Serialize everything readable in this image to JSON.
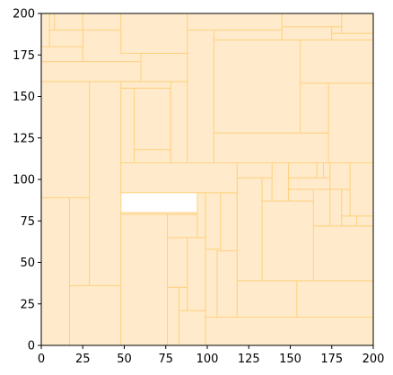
{
  "chart_data": {
    "type": "treemap",
    "title": "",
    "xlabel": "",
    "ylabel": "",
    "xlim": [
      0,
      200
    ],
    "ylim": [
      0,
      200
    ],
    "x_ticks": [
      "0",
      "25",
      "50",
      "75",
      "100",
      "125",
      "150",
      "175",
      "200"
    ],
    "y_ticks": [
      "0",
      "25",
      "50",
      "75",
      "100",
      "125",
      "150",
      "175",
      "200"
    ],
    "grid": false,
    "legend": "none",
    "fill_color": "#ffebcc",
    "edge_color": "#ffd180",
    "rectangles": [
      {
        "x0": 0,
        "y0": 0,
        "x1": 17,
        "y1": 89
      },
      {
        "x0": 17,
        "y0": 0,
        "x1": 48,
        "y1": 36
      },
      {
        "x0": 17,
        "y0": 36,
        "x1": 29,
        "y1": 89
      },
      {
        "x0": 29,
        "y0": 36,
        "x1": 48,
        "y1": 159
      },
      {
        "x0": 0,
        "y0": 89,
        "x1": 29,
        "y1": 159
      },
      {
        "x0": 48,
        "y0": 0,
        "x1": 76,
        "y1": 80
      },
      {
        "x0": 76,
        "y0": 0,
        "x1": 83,
        "y1": 35
      },
      {
        "x0": 83,
        "y0": 0,
        "x1": 99,
        "y1": 21
      },
      {
        "x0": 83,
        "y0": 21,
        "x1": 88,
        "y1": 35
      },
      {
        "x0": 76,
        "y0": 35,
        "x1": 88,
        "y1": 65
      },
      {
        "x0": 88,
        "y0": 21,
        "x1": 99,
        "y1": 65
      },
      {
        "x0": 76,
        "y0": 65,
        "x1": 94,
        "y1": 79
      },
      {
        "x0": 48,
        "y0": 80,
        "x1": 94,
        "y1": 79
      },
      {
        "x0": 94,
        "y0": 65,
        "x1": 99,
        "y1": 92
      },
      {
        "x0": 99,
        "y0": 0,
        "x1": 200,
        "y1": 17
      },
      {
        "x0": 99,
        "y0": 17,
        "x1": 106,
        "y1": 58
      },
      {
        "x0": 106,
        "y0": 17,
        "x1": 118,
        "y1": 57
      },
      {
        "x0": 99,
        "y0": 58,
        "x1": 108,
        "y1": 92
      },
      {
        "x0": 108,
        "y0": 57,
        "x1": 118,
        "y1": 92
      },
      {
        "x0": 118,
        "y0": 17,
        "x1": 154,
        "y1": 39
      },
      {
        "x0": 154,
        "y0": 17,
        "x1": 200,
        "y1": 39
      },
      {
        "x0": 118,
        "y0": 39,
        "x1": 133,
        "y1": 101
      },
      {
        "x0": 133,
        "y0": 39,
        "x1": 164,
        "y1": 87
      },
      {
        "x0": 164,
        "y0": 39,
        "x1": 200,
        "y1": 72
      },
      {
        "x0": 133,
        "y0": 87,
        "x1": 139,
        "y1": 101
      },
      {
        "x0": 139,
        "y0": 87,
        "x1": 149,
        "y1": 110
      },
      {
        "x0": 149,
        "y0": 87,
        "x1": 164,
        "y1": 94
      },
      {
        "x0": 164,
        "y0": 72,
        "x1": 174,
        "y1": 94
      },
      {
        "x0": 174,
        "y0": 72,
        "x1": 181,
        "y1": 94
      },
      {
        "x0": 181,
        "y0": 72,
        "x1": 190,
        "y1": 78
      },
      {
        "x0": 190,
        "y0": 72,
        "x1": 200,
        "y1": 78
      },
      {
        "x0": 181,
        "y0": 78,
        "x1": 186,
        "y1": 94
      },
      {
        "x0": 186,
        "y0": 78,
        "x1": 200,
        "y1": 110
      },
      {
        "x0": 149,
        "y0": 94,
        "x1": 174,
        "y1": 101
      },
      {
        "x0": 174,
        "y0": 94,
        "x1": 186,
        "y1": 110
      },
      {
        "x0": 149,
        "y0": 101,
        "x1": 166,
        "y1": 110
      },
      {
        "x0": 166,
        "y0": 101,
        "x1": 170,
        "y1": 110
      },
      {
        "x0": 170,
        "y0": 101,
        "x1": 174,
        "y1": 110
      },
      {
        "x0": 48,
        "y0": 92,
        "x1": 118,
        "y1": 110
      },
      {
        "x0": 118,
        "y0": 101,
        "x1": 139,
        "y1": 110
      },
      {
        "x0": 48,
        "y0": 110,
        "x1": 56,
        "y1": 155
      },
      {
        "x0": 56,
        "y0": 110,
        "x1": 78,
        "y1": 118
      },
      {
        "x0": 56,
        "y0": 118,
        "x1": 78,
        "y1": 155
      },
      {
        "x0": 78,
        "y0": 110,
        "x1": 88,
        "y1": 159
      },
      {
        "x0": 48,
        "y0": 155,
        "x1": 78,
        "y1": 159
      },
      {
        "x0": 88,
        "y0": 110,
        "x1": 104,
        "y1": 190
      },
      {
        "x0": 104,
        "y0": 110,
        "x1": 173,
        "y1": 128
      },
      {
        "x0": 173,
        "y0": 110,
        "x1": 200,
        "y1": 158
      },
      {
        "x0": 104,
        "y0": 128,
        "x1": 173,
        "y1": 184
      },
      {
        "x0": 156,
        "y0": 128,
        "x1": 173,
        "y1": 158
      },
      {
        "x0": 156,
        "y0": 158,
        "x1": 200,
        "y1": 184
      },
      {
        "x0": 0,
        "y0": 159,
        "x1": 60,
        "y1": 171
      },
      {
        "x0": 60,
        "y0": 159,
        "x1": 88,
        "y1": 176
      },
      {
        "x0": 0,
        "y0": 171,
        "x1": 25,
        "y1": 180
      },
      {
        "x0": 25,
        "y0": 171,
        "x1": 60,
        "y1": 198
      },
      {
        "x0": 0,
        "y0": 180,
        "x1": 5,
        "y1": 200
      },
      {
        "x0": 5,
        "y0": 180,
        "x1": 25,
        "y1": 190
      },
      {
        "x0": 5,
        "y0": 190,
        "x1": 8,
        "y1": 200
      },
      {
        "x0": 8,
        "y0": 190,
        "x1": 25,
        "y1": 200
      },
      {
        "x0": 25,
        "y0": 190,
        "x1": 48,
        "y1": 200
      },
      {
        "x0": 48,
        "y0": 176,
        "x1": 88,
        "y1": 200
      },
      {
        "x0": 104,
        "y0": 184,
        "x1": 145,
        "y1": 190
      },
      {
        "x0": 88,
        "y0": 190,
        "x1": 145,
        "y1": 200
      },
      {
        "x0": 145,
        "y0": 184,
        "x1": 175,
        "y1": 192
      },
      {
        "x0": 175,
        "y0": 184,
        "x1": 200,
        "y1": 188
      },
      {
        "x0": 175,
        "y0": 188,
        "x1": 181,
        "y1": 192
      },
      {
        "x0": 145,
        "y0": 192,
        "x1": 181,
        "y1": 200
      },
      {
        "x0": 181,
        "y0": 188,
        "x1": 200,
        "y1": 200
      }
    ]
  }
}
